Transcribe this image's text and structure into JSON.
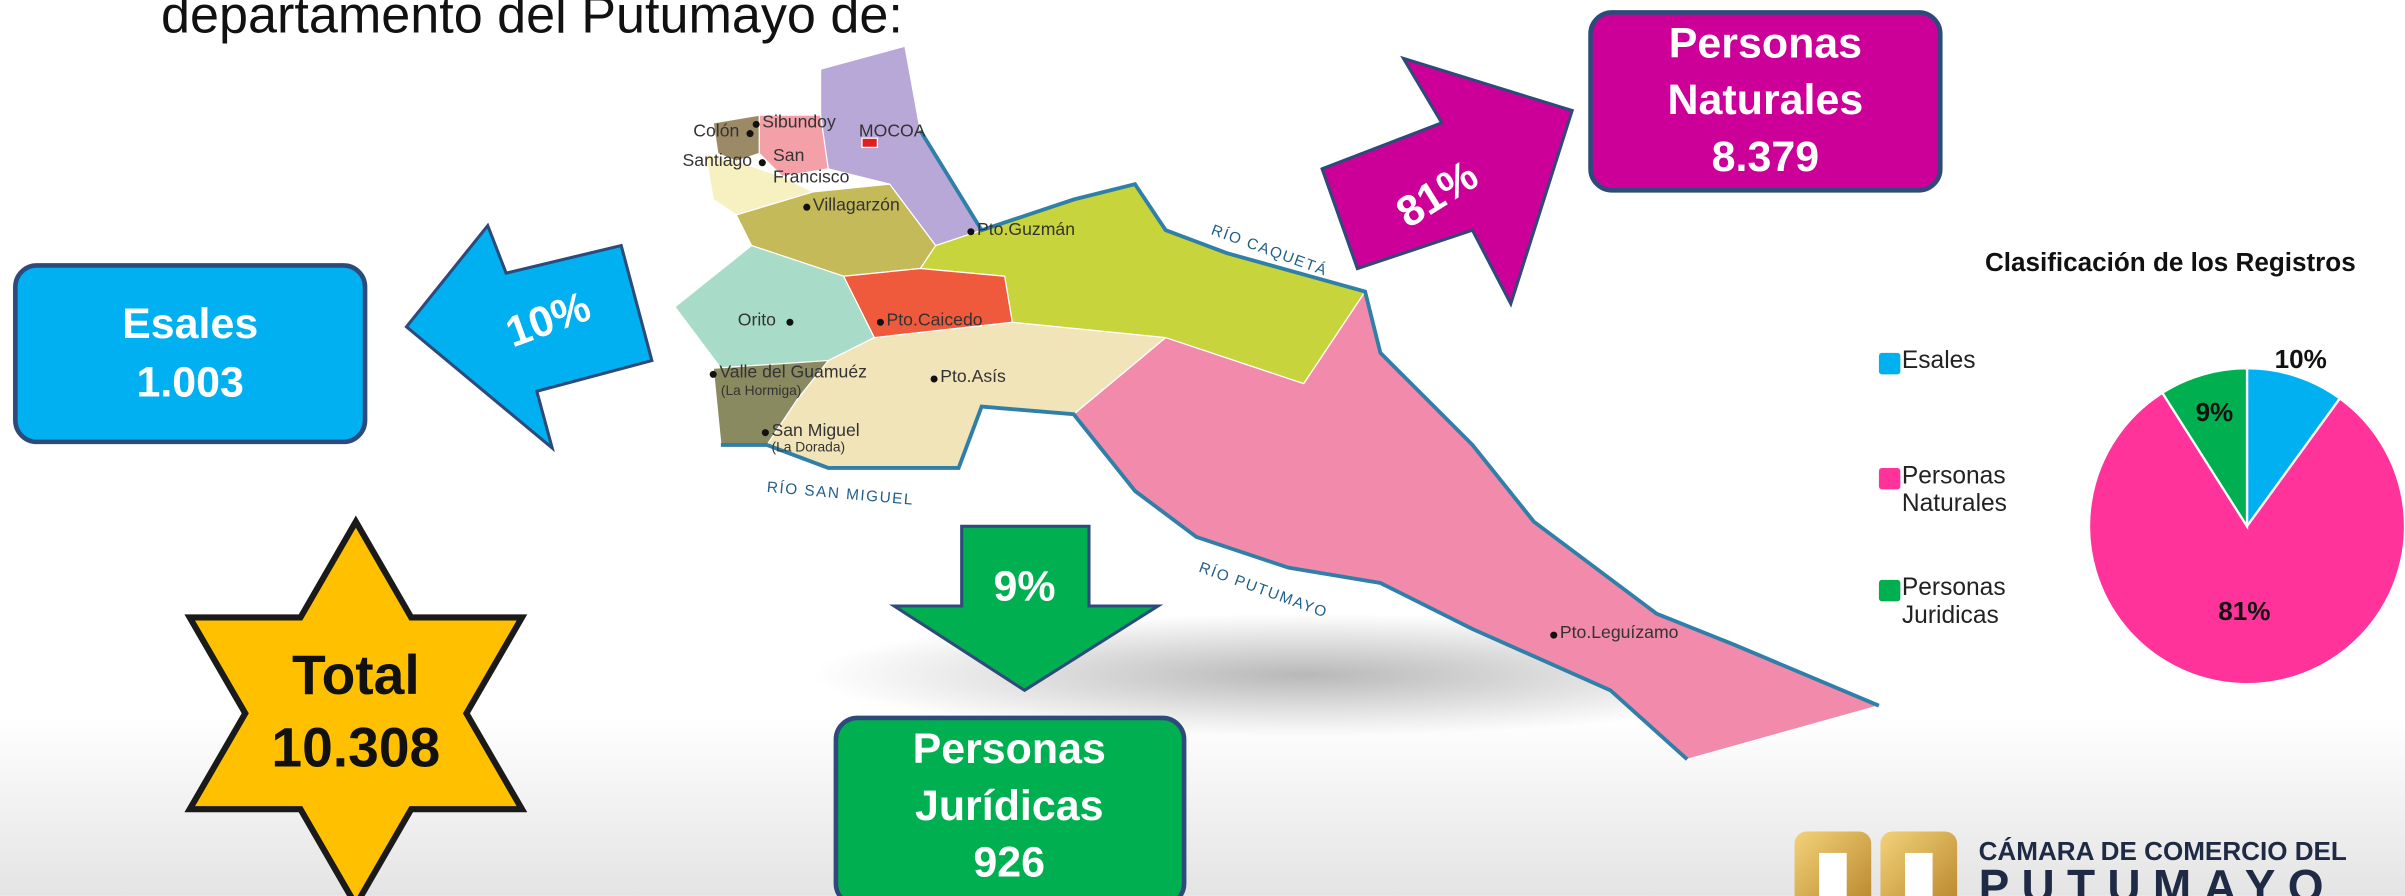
{
  "heading": "departamento del Putumayo de:",
  "boxes": {
    "esales": {
      "title": "Esales",
      "value": "1.003"
    },
    "naturales": {
      "line1": "Personas",
      "line2": "Naturales",
      "value": "8.379"
    },
    "juridicas": {
      "line1": "Personas",
      "line2": "Jurídicas",
      "value": "926"
    }
  },
  "arrows": [
    "10%",
    "81%",
    "9%"
  ],
  "total": {
    "label": "Total",
    "value": "10.308"
  },
  "map": {
    "labels": [
      "Colón",
      "Sibundoy",
      "MOCOA",
      "Santiago",
      "San",
      "Francisco",
      "Villagarzón",
      "Pto.Guzmán",
      "Orito",
      "Pto.Caicedo",
      "Valle del Guamuéz",
      "(La Hormiga)",
      "Pto.Asís",
      "San Miguel",
      "(La Dorada)",
      "Pto.Leguízamo"
    ],
    "rivers": [
      "RÍO CAQUETÁ",
      "RÍO SAN MIGUEL",
      "RÍO PUTUMAYO"
    ]
  },
  "chart_data": {
    "type": "pie",
    "title": "Clasificación de los Registros",
    "categories": [
      "Esales",
      "Personas Naturales",
      "Personas Juridicas"
    ],
    "values": [
      10,
      81,
      9
    ],
    "value_labels": [
      "10%",
      "81%",
      "9%"
    ],
    "colors": [
      "#00b0f0",
      "#ff3399",
      "#00b050"
    ]
  },
  "logo": {
    "line1": "CÁMARA DE COMERCIO DEL",
    "line2": "PUTUMAYO"
  }
}
